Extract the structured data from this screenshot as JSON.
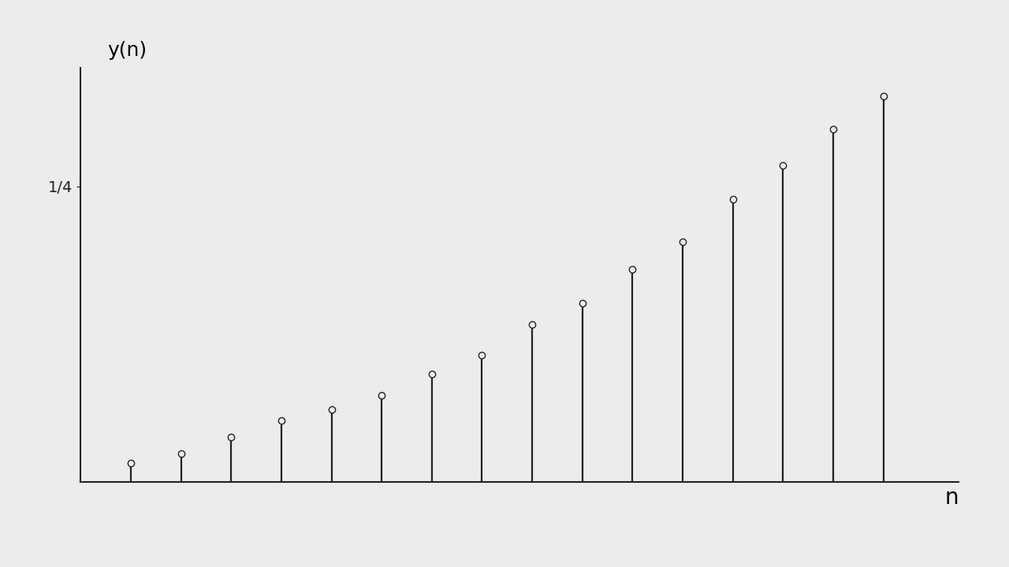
{
  "chart_data": {
    "type": "stem",
    "x": [
      1,
      2,
      3,
      4,
      5,
      6,
      7,
      8,
      9,
      10,
      11,
      12,
      13,
      14,
      15,
      16
    ],
    "values": [
      0.016,
      0.024,
      0.038,
      0.052,
      0.061,
      0.073,
      0.091,
      0.107,
      0.133,
      0.151,
      0.18,
      0.203,
      0.239,
      0.268,
      0.298,
      0.326
    ],
    "x_label": "n",
    "y_label": "y(n)",
    "xlim": [
      0,
      17.5
    ],
    "ylim": [
      0,
      0.35
    ],
    "yticks": [
      {
        "value": 0.25,
        "label": "1/4"
      }
    ],
    "xticks": [],
    "tick_labels": "y",
    "color": "#222222",
    "marker": "circle",
    "grid": false
  }
}
